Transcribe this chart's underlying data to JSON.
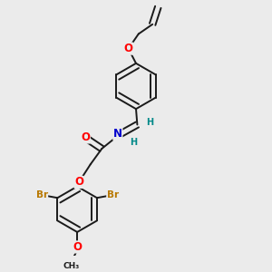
{
  "background_color": "#ebebeb",
  "bond_color": "#1a1a1a",
  "bond_width": 1.4,
  "dbo": 0.012,
  "atom_colors": {
    "O": "#ff0000",
    "N": "#0000cc",
    "Br": "#b87800",
    "H": "#008888",
    "C": "#1a1a1a"
  },
  "fs": 8.5
}
